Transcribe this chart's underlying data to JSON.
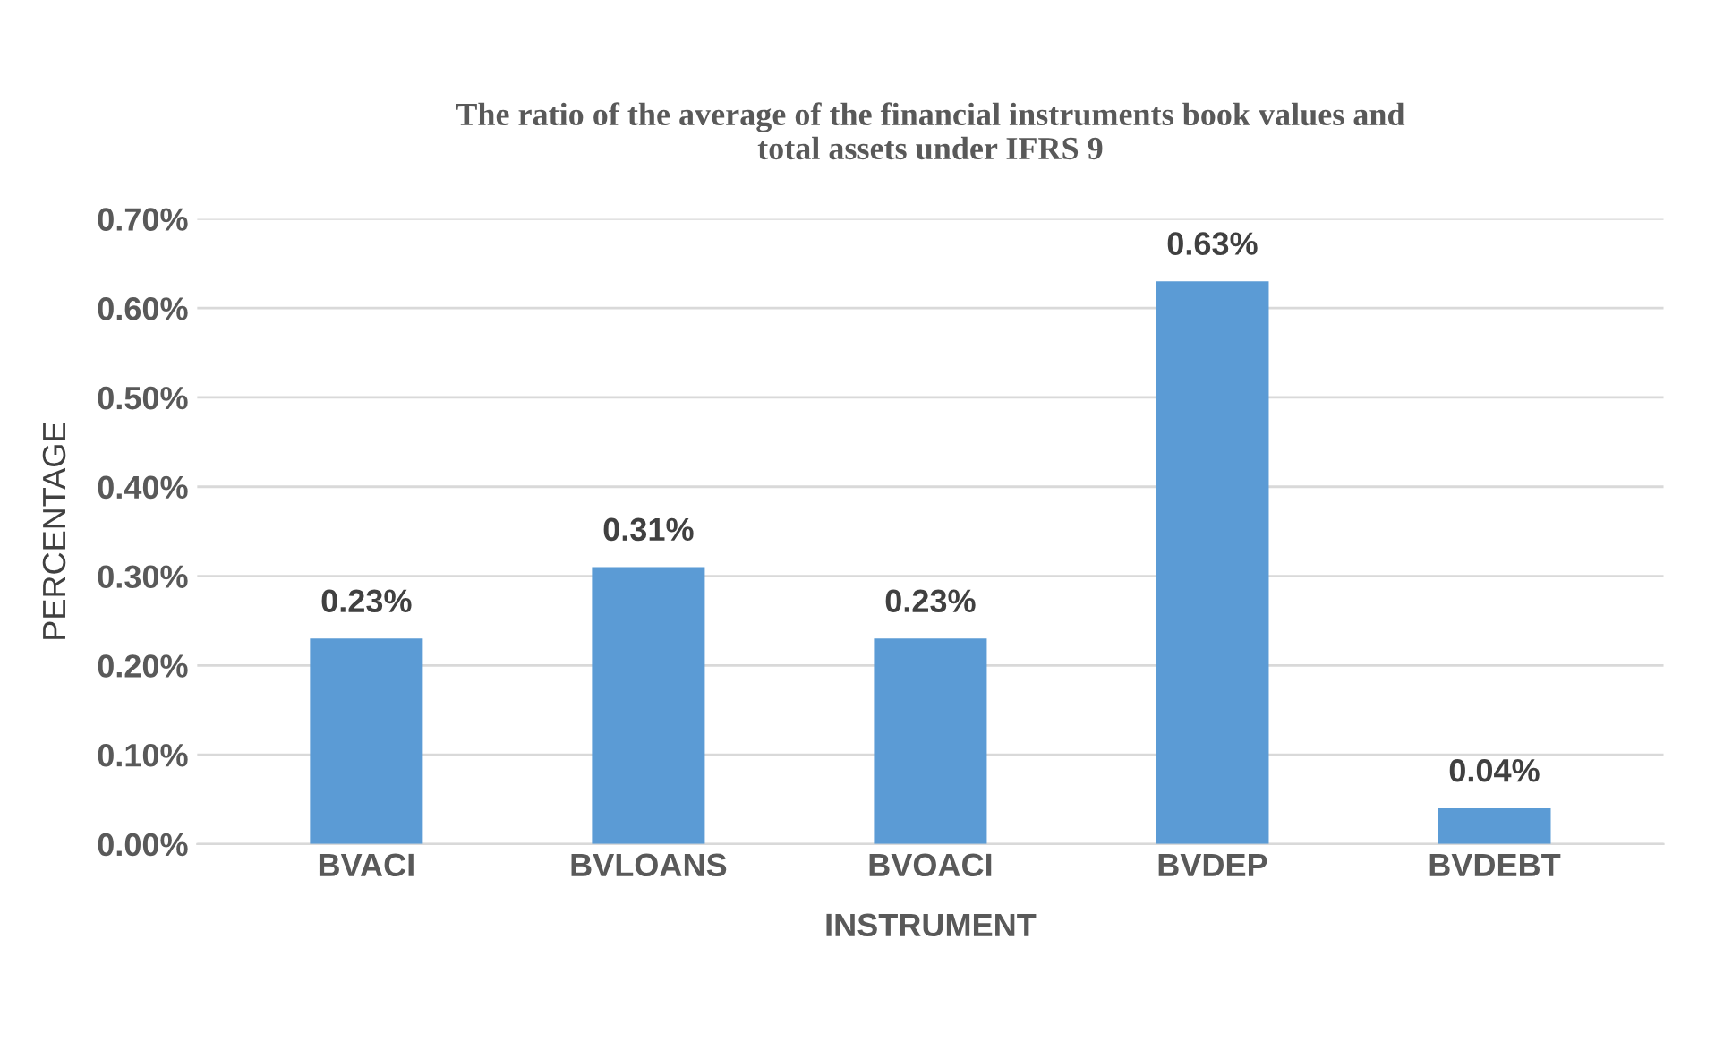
{
  "chart_data": {
    "type": "bar",
    "title": "The ratio of the average of the financial instruments book values and\ntotal assets under IFRS 9",
    "xlabel": "INSTRUMENT",
    "ylabel": "PERCENTAGE",
    "categories": [
      "BVACI",
      "BVLOANS",
      "BVOACI",
      "BVDEP",
      "BVDEBT"
    ],
    "values": [
      0.23,
      0.31,
      0.23,
      0.63,
      0.04
    ],
    "value_labels": [
      "0.23%",
      "0.31%",
      "0.23%",
      "0.63%",
      "0.04%"
    ],
    "color": "#5b9bd5",
    "ylim": [
      0,
      0.7
    ],
    "yticks": [
      {
        "value": 0,
        "label": "0.00%"
      },
      {
        "value": 0.1,
        "label": "0.10%"
      },
      {
        "value": 0.2,
        "label": "0.20%"
      },
      {
        "value": 0.3,
        "label": "0.30%"
      },
      {
        "value": 0.4,
        "label": "0.40%"
      },
      {
        "value": 0.5,
        "label": "0.50%"
      },
      {
        "value": 0.6,
        "label": "0.60%"
      },
      {
        "value": 0.7,
        "label": "0.70%"
      }
    ],
    "grid": "y",
    "legend": false
  }
}
